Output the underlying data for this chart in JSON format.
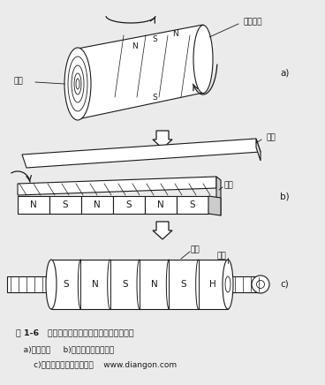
{
  "title_line1": "图 1-6   旋转电机演变为圆筒型直线电机的过程",
  "title_line2": "   a)旋转电机     b)扁平型单边直线电机",
  "title_line3": "       c)圆筒型（管型）直线电机    www.diangon.com",
  "label_a": "a)",
  "label_b": "b)",
  "label_c": "c)",
  "label_stator": "定子磁场",
  "label_rotor": "转子",
  "label_primary_b": "初级",
  "label_secondary_b": "次级",
  "label_primary_c": "初级",
  "label_secondary_c": "次级",
  "ns_labels_b": [
    "N",
    "S",
    "N",
    "S",
    "N",
    "S"
  ],
  "ns_labels_c": [
    "S",
    "N",
    "S",
    "N",
    "S",
    "H"
  ],
  "bg_color": "#ebebeb",
  "line_color": "#1a1a1a",
  "text_color": "#1a1a1a"
}
